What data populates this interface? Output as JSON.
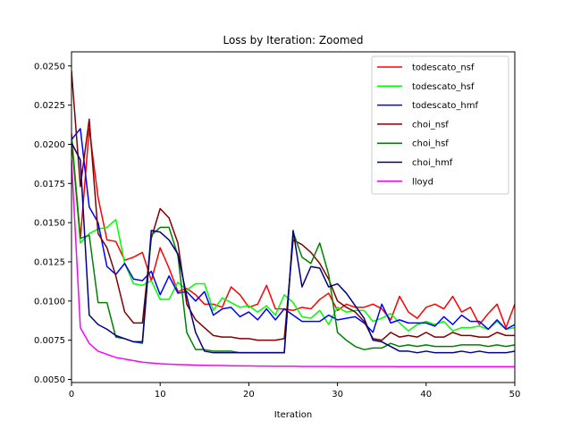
{
  "chart_data": {
    "type": "line",
    "title": "Loss by Iteration: Zoomed",
    "xlabel": "Iteration",
    "ylabel": "",
    "xlim": [
      0,
      50
    ],
    "ylim": [
      0.0048,
      0.0259
    ],
    "xticks": [
      "0",
      "10",
      "20",
      "30",
      "40",
      "50"
    ],
    "yticks": [
      "0.0050",
      "0.0075",
      "0.0100",
      "0.0125",
      "0.0150",
      "0.0175",
      "0.0200",
      "0.0225",
      "0.0250"
    ],
    "legend_position": "top-right",
    "grid": false,
    "x": [
      0,
      1,
      2,
      3,
      4,
      5,
      6,
      7,
      8,
      9,
      10,
      11,
      12,
      13,
      14,
      15,
      16,
      17,
      18,
      19,
      20,
      21,
      22,
      23,
      24,
      25,
      26,
      27,
      28,
      29,
      30,
      31,
      32,
      33,
      34,
      35,
      36,
      37,
      38,
      39,
      40,
      41,
      42,
      43,
      44,
      45,
      46,
      47,
      48,
      49,
      50
    ],
    "series": [
      {
        "name": "todescato_nsf",
        "color": "#ff0000",
        "values": [
          0.0207,
          0.014,
          0.021,
          0.0166,
          0.0139,
          0.0138,
          0.0126,
          0.0128,
          0.0131,
          0.0113,
          0.0134,
          0.0121,
          0.0106,
          0.0108,
          0.0104,
          0.0098,
          0.0098,
          0.0096,
          0.0109,
          0.0104,
          0.0096,
          0.0098,
          0.011,
          0.0095,
          0.0095,
          0.0094,
          0.0096,
          0.0095,
          0.0101,
          0.0105,
          0.0094,
          0.0098,
          0.0096,
          0.0096,
          0.0098,
          0.0095,
          0.0088,
          0.0103,
          0.0093,
          0.0089,
          0.0096,
          0.0098,
          0.0095,
          0.0103,
          0.0093,
          0.0096,
          0.0085,
          0.0092,
          0.0098,
          0.0083,
          0.0098
        ]
      },
      {
        "name": "todescato_hsf",
        "color": "#00ff00",
        "values": [
          0.0205,
          0.0137,
          0.0143,
          0.0146,
          0.0147,
          0.0152,
          0.0124,
          0.0111,
          0.011,
          0.0113,
          0.0101,
          0.0101,
          0.0112,
          0.0107,
          0.0111,
          0.0111,
          0.0094,
          0.0102,
          0.0099,
          0.0096,
          0.0097,
          0.0093,
          0.0097,
          0.0091,
          0.0104,
          0.0099,
          0.009,
          0.0089,
          0.0094,
          0.0085,
          0.0096,
          0.0093,
          0.0094,
          0.0094,
          0.0087,
          0.0089,
          0.0092,
          0.0086,
          0.0081,
          0.0085,
          0.0087,
          0.0085,
          0.0087,
          0.0081,
          0.0083,
          0.0083,
          0.0084,
          0.0082,
          0.0087,
          0.0082,
          0.0083
        ]
      },
      {
        "name": "todescato_hmf",
        "color": "#0000ff",
        "values": [
          0.0203,
          0.021,
          0.016,
          0.015,
          0.0122,
          0.0117,
          0.0124,
          0.0114,
          0.0113,
          0.0119,
          0.0104,
          0.0116,
          0.0105,
          0.0106,
          0.01,
          0.0106,
          0.0091,
          0.0095,
          0.0096,
          0.009,
          0.0093,
          0.0088,
          0.0095,
          0.0088,
          0.0095,
          0.0091,
          0.0087,
          0.0087,
          0.0087,
          0.0091,
          0.0088,
          0.0089,
          0.009,
          0.0086,
          0.008,
          0.0098,
          0.0086,
          0.0088,
          0.0086,
          0.0086,
          0.0086,
          0.0084,
          0.009,
          0.0085,
          0.0091,
          0.0087,
          0.0087,
          0.0082,
          0.0088,
          0.0082,
          0.0085
        ]
      },
      {
        "name": "choi_nsf",
        "color": "#800000",
        "values": [
          0.0247,
          0.0173,
          0.0216,
          0.0143,
          0.0134,
          0.0116,
          0.0093,
          0.0086,
          0.0086,
          0.014,
          0.0159,
          0.0153,
          0.0137,
          0.0098,
          0.0088,
          0.0083,
          0.0078,
          0.0077,
          0.0077,
          0.0076,
          0.0076,
          0.0075,
          0.0075,
          0.0075,
          0.0076,
          0.0139,
          0.0136,
          0.0131,
          0.0124,
          0.0114,
          0.01,
          0.0096,
          0.0093,
          0.0087,
          0.0076,
          0.0075,
          0.008,
          0.0077,
          0.0078,
          0.0077,
          0.008,
          0.0077,
          0.0077,
          0.008,
          0.0078,
          0.0078,
          0.0077,
          0.0077,
          0.008,
          0.0078,
          0.0078
        ]
      },
      {
        "name": "choi_hsf",
        "color": "#008000",
        "values": [
          0.0202,
          0.014,
          0.0142,
          0.0099,
          0.0099,
          0.0077,
          0.0076,
          0.0074,
          0.0073,
          0.0142,
          0.0147,
          0.0147,
          0.0129,
          0.008,
          0.0069,
          0.0069,
          0.0068,
          0.0068,
          0.0068,
          0.0067,
          0.0067,
          0.0067,
          0.0067,
          0.0067,
          0.0067,
          0.0144,
          0.0128,
          0.0124,
          0.0137,
          0.0117,
          0.008,
          0.0075,
          0.0071,
          0.0069,
          0.007,
          0.007,
          0.0073,
          0.0071,
          0.0072,
          0.0071,
          0.0072,
          0.0071,
          0.0071,
          0.0071,
          0.0072,
          0.0072,
          0.0072,
          0.0071,
          0.0072,
          0.0071,
          0.0072
        ]
      },
      {
        "name": "choi_hmf",
        "color": "#000080",
        "values": [
          0.0201,
          0.019,
          0.0091,
          0.0085,
          0.0082,
          0.0078,
          0.0076,
          0.0074,
          0.0074,
          0.0145,
          0.0144,
          0.0139,
          0.013,
          0.0103,
          0.008,
          0.0068,
          0.0067,
          0.0067,
          0.0067,
          0.0067,
          0.0067,
          0.0067,
          0.0067,
          0.0067,
          0.0067,
          0.0145,
          0.0109,
          0.0122,
          0.0121,
          0.0109,
          0.0111,
          0.0105,
          0.0097,
          0.0089,
          0.0075,
          0.0074,
          0.0071,
          0.0068,
          0.0068,
          0.0067,
          0.0068,
          0.0067,
          0.0067,
          0.0067,
          0.0068,
          0.0067,
          0.0068,
          0.0067,
          0.0067,
          0.0067,
          0.0068
        ]
      },
      {
        "name": "lloyd",
        "color": "#ff00ff",
        "values": [
          0.019,
          0.0083,
          0.0073,
          0.0068,
          0.0066,
          0.0064,
          0.0063,
          0.0062,
          0.0061,
          0.00605,
          0.006,
          0.00597,
          0.00595,
          0.00593,
          0.00591,
          0.0059,
          0.00589,
          0.00588,
          0.00587,
          0.00586,
          0.00586,
          0.00585,
          0.00585,
          0.00584,
          0.00584,
          0.00584,
          0.00583,
          0.00583,
          0.00583,
          0.00583,
          0.00582,
          0.00582,
          0.00582,
          0.00582,
          0.00582,
          0.00582,
          0.00582,
          0.00581,
          0.00581,
          0.00581,
          0.00581,
          0.00581,
          0.00581,
          0.00581,
          0.00581,
          0.00581,
          0.00581,
          0.00581,
          0.00581,
          0.00581,
          0.00581
        ]
      }
    ]
  }
}
